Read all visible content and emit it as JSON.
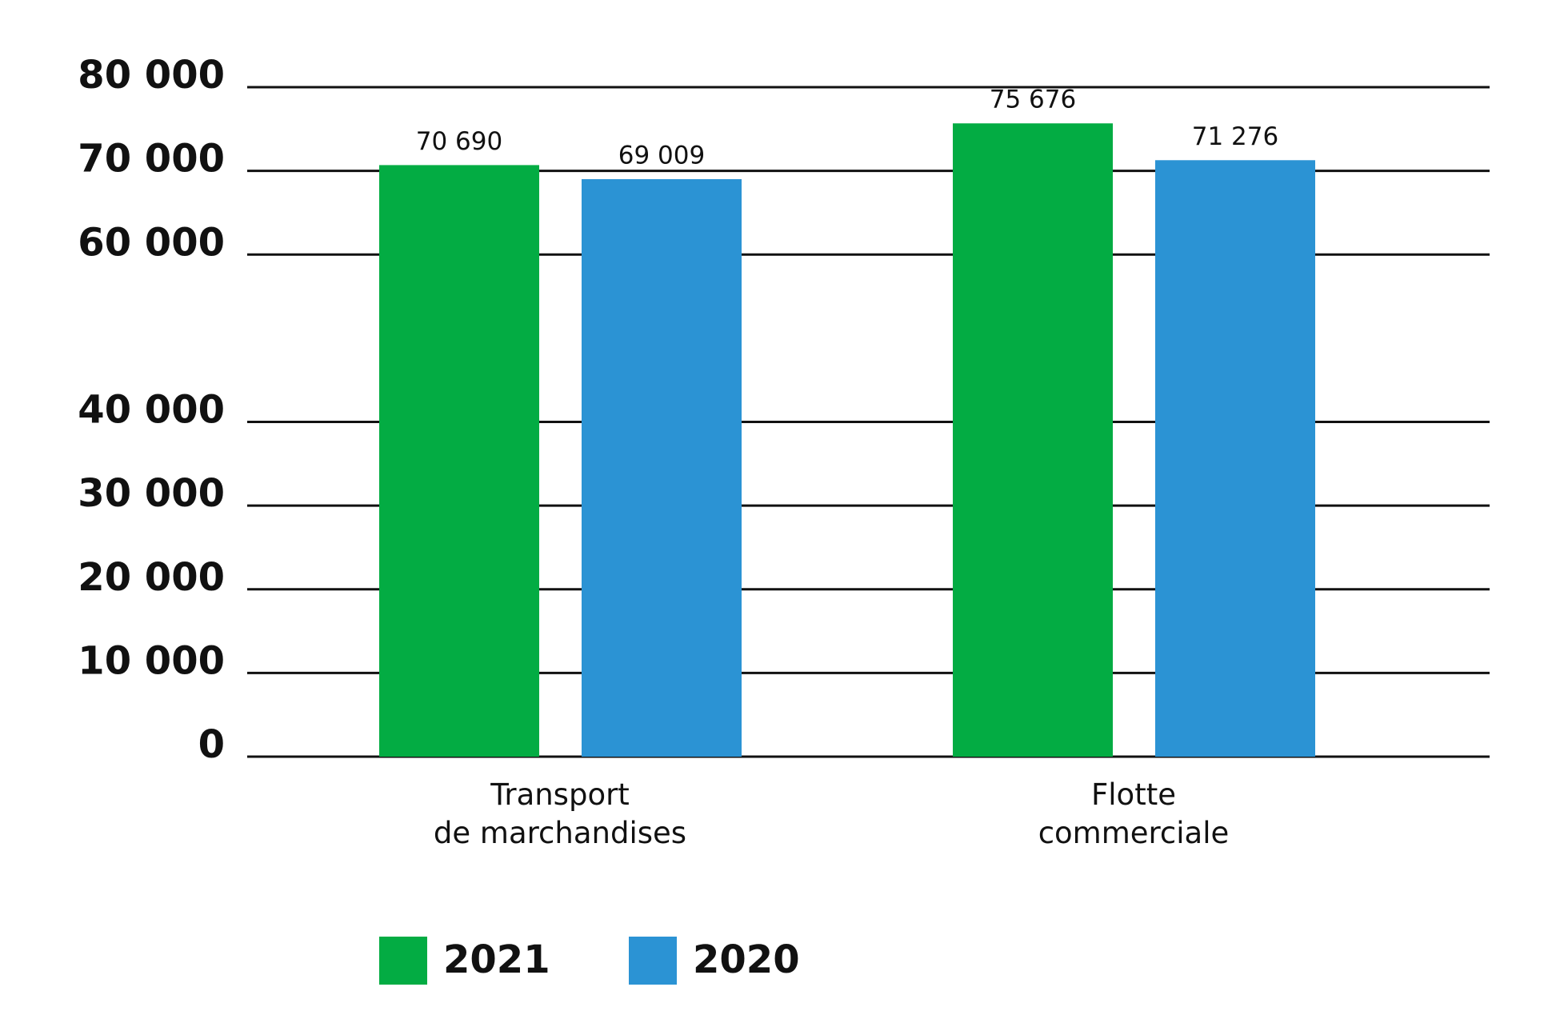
{
  "chart_data": {
    "type": "bar",
    "categories": [
      "Transport\nde marchandises",
      "Flotte\ncommerciale"
    ],
    "series": [
      {
        "name": "2021",
        "color": "#03ac43",
        "values": [
          70690,
          75676
        ],
        "value_labels": [
          "70 690",
          "75 676"
        ]
      },
      {
        "name": "2020",
        "color": "#2b93d4",
        "values": [
          69009,
          71276
        ],
        "value_labels": [
          "69 009",
          "71 276"
        ]
      }
    ],
    "ylim": [
      0,
      80000
    ],
    "yticks": [
      0,
      {
        "value": 10000,
        "label": "10 000"
      },
      {
        "value": 20000,
        "label": "20 000"
      },
      {
        "value": 30000,
        "label": "30 000"
      },
      {
        "value": 40000,
        "label": "40 000"
      },
      {
        "value": 60000,
        "label": "60 000"
      },
      {
        "value": 70000,
        "label": "70 000"
      },
      {
        "value": 80000,
        "label": "80 000"
      }
    ],
    "grid": true,
    "legend": "bottom"
  }
}
